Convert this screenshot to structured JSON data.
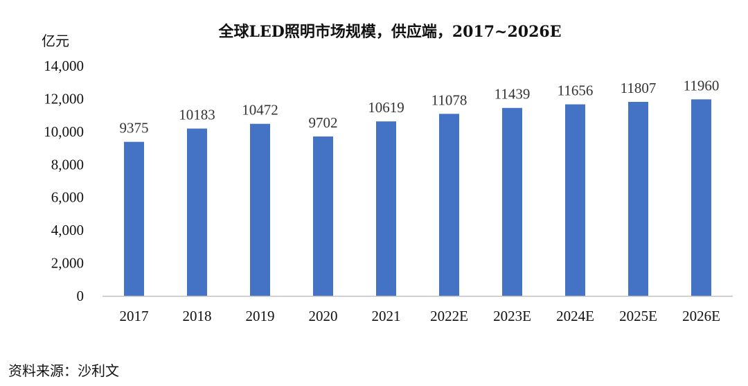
{
  "chart_data": {
    "type": "bar",
    "title": "全球LED照明市场规模，供应端，2017~2026E",
    "unit_label": "亿元",
    "categories": [
      "2017",
      "2018",
      "2019",
      "2020",
      "2021",
      "2022E",
      "2023E",
      "2024E",
      "2025E",
      "2026E"
    ],
    "values": [
      9375,
      10183,
      10472,
      9702,
      10619,
      11078,
      11439,
      11656,
      11807,
      11960
    ],
    "data_labels": [
      "9375",
      "10183",
      "10472",
      "9702",
      "10619",
      "11078",
      "11439",
      "11656",
      "11807",
      "11960"
    ],
    "ylim": [
      0,
      14000
    ],
    "yticks": [
      0,
      2000,
      4000,
      6000,
      8000,
      10000,
      12000,
      14000
    ],
    "ytick_labels": [
      "0",
      "2,000",
      "4,000",
      "6,000",
      "8,000",
      "10,000",
      "12,000",
      "14,000"
    ],
    "xlabel": "",
    "ylabel": "亿元",
    "grid": false,
    "legend": "none",
    "bar_color": "#4472C4"
  },
  "source": "资料来源：沙利文"
}
